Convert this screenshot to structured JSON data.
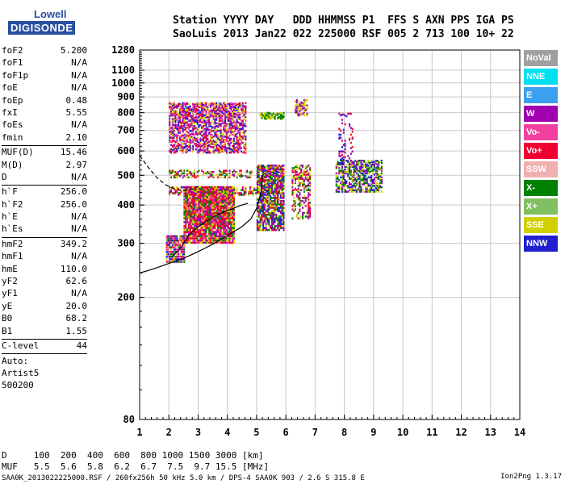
{
  "logo": {
    "line1": "Lowell",
    "line2": "DIGISONDE"
  },
  "header": {
    "line1": "Station YYYY DAY   DDD HHMMSS P1  FFS S AXN PPS IGA PS",
    "line2": "SaoLuis 2013 Jan22 022 225000 RSF 005 2 713 100 10+ 22"
  },
  "params": [
    {
      "k": "foF2",
      "v": "5.200"
    },
    {
      "k": "foF1",
      "v": "N/A"
    },
    {
      "k": "foF1p",
      "v": "N/A"
    },
    {
      "k": "foE",
      "v": "N/A"
    },
    {
      "k": "foEp",
      "v": "0.48"
    },
    {
      "k": "fxI",
      "v": "5.55"
    },
    {
      "k": "foEs",
      "v": "N/A"
    },
    {
      "k": "fmin",
      "v": "2.10"
    },
    {
      "sep": true
    },
    {
      "k": "MUF(D)",
      "v": "15.46"
    },
    {
      "k": "M(D)",
      "v": "2.97"
    },
    {
      "k": "D",
      "v": "N/A"
    },
    {
      "sep": true
    },
    {
      "k": "h`F",
      "v": "256.0"
    },
    {
      "k": "h`F2",
      "v": "256.0"
    },
    {
      "k": "h`E",
      "v": "N/A"
    },
    {
      "k": "h`Es",
      "v": "N/A"
    },
    {
      "sep": true
    },
    {
      "k": "hmF2",
      "v": "349.2"
    },
    {
      "k": "hmF1",
      "v": "N/A"
    },
    {
      "k": "hmE",
      "v": "110.0"
    },
    {
      "k": "yF2",
      "v": "62.6"
    },
    {
      "k": "yF1",
      "v": "N/A"
    },
    {
      "k": "yE",
      "v": "20.0"
    },
    {
      "k": "B0",
      "v": "68.2"
    },
    {
      "k": "B1",
      "v": "1.55"
    },
    {
      "sep": true
    },
    {
      "k": "C-level",
      "v": "44"
    },
    {
      "sep": true
    }
  ],
  "auto": {
    "line1": "Auto:",
    "line2": "Artist5",
    "line3": "500200"
  },
  "legend": [
    {
      "label": "NoVal",
      "color": "#a0a0a0"
    },
    {
      "label": "NNE",
      "color": "#00e0f0"
    },
    {
      "label": "E",
      "color": "#3aa0f0"
    },
    {
      "label": "W",
      "color": "#a000b0"
    },
    {
      "label": "Vo-",
      "color": "#f040a0"
    },
    {
      "label": "Vo+",
      "color": "#f00030"
    },
    {
      "label": "SSW",
      "color": "#f0b0b0"
    },
    {
      "label": "X-",
      "color": "#008000"
    },
    {
      "label": "X+",
      "color": "#80c060"
    },
    {
      "label": "SSE",
      "color": "#d0d000"
    },
    {
      "label": "NNW",
      "color": "#2020d0"
    }
  ],
  "footer": {
    "line1": "D     100  200  400  600  800 1000 1500 3000 [km]",
    "line2": "MUF   5.5  5.6  5.8  6.2  6.7  7.5  9.7 15.5 [MHz]",
    "line3": "SAA0K_2013022225000.RSF / 260fx256h 50 kHz 5.0 km / DPS-4 SAA0K 903 / 2.6 S 315.8 E",
    "version": "Ion2Png 1.3.17"
  },
  "chart_data": {
    "type": "scatter",
    "title": "",
    "xlabel": "",
    "ylabel": "",
    "xlim": [
      1,
      14
    ],
    "ylim": [
      80,
      1280
    ],
    "y_scale": "log",
    "grid": true,
    "x_ticks": [
      1,
      2,
      3,
      4,
      5,
      6,
      7,
      8,
      9,
      10,
      11,
      12,
      13,
      14
    ],
    "y_ticks": [
      80,
      200,
      300,
      400,
      500,
      600,
      700,
      800,
      900,
      1000,
      1100,
      1280
    ],
    "echo_clusters": [
      {
        "x": [
          1.9,
          2.5
        ],
        "y": [
          260,
          320
        ],
        "density": 0.9,
        "colors": [
          "W",
          "Vo+",
          "Vo-",
          "X-",
          "NNW",
          "SSE"
        ]
      },
      {
        "x": [
          2.5,
          4.2
        ],
        "y": [
          300,
          460
        ],
        "density": 0.95,
        "colors": [
          "Vo+",
          "Vo-",
          "Vo+",
          "W",
          "X-",
          "SSE"
        ]
      },
      {
        "x": [
          2.0,
          5.0
        ],
        "y": [
          430,
          460
        ],
        "density": 0.5,
        "colors": [
          "X-",
          "SSE",
          "W",
          "Vo+"
        ]
      },
      {
        "x": [
          2.0,
          4.8
        ],
        "y": [
          490,
          520
        ],
        "density": 0.35,
        "colors": [
          "SSE",
          "Vo+",
          "W",
          "X-"
        ]
      },
      {
        "x": [
          2.0,
          4.6
        ],
        "y": [
          590,
          860
        ],
        "density": 0.45,
        "colors": [
          "NNW",
          "W",
          "Vo-",
          "Vo+",
          "SSE"
        ]
      },
      {
        "x": [
          5.0,
          5.9
        ],
        "y": [
          330,
          540
        ],
        "density": 0.8,
        "colors": [
          "SSE",
          "X-",
          "Vo+",
          "W",
          "NNW"
        ]
      },
      {
        "x": [
          5.1,
          5.9
        ],
        "y": [
          760,
          800
        ],
        "density": 0.5,
        "colors": [
          "SSE",
          "X-"
        ]
      },
      {
        "x": [
          6.2,
          6.8
        ],
        "y": [
          360,
          540
        ],
        "density": 0.45,
        "colors": [
          "SSE",
          "Vo+",
          "W",
          "X-"
        ]
      },
      {
        "x": [
          6.3,
          6.7
        ],
        "y": [
          780,
          880
        ],
        "density": 0.35,
        "colors": [
          "SSE",
          "W"
        ]
      },
      {
        "x": [
          7.7,
          9.3
        ],
        "y": [
          440,
          560
        ],
        "density": 0.55,
        "colors": [
          "SSE",
          "X-",
          "NNW",
          "W"
        ]
      },
      {
        "x": [
          7.8,
          8.3
        ],
        "y": [
          560,
          800
        ],
        "density": 0.12,
        "colors": [
          "W",
          "Vo+",
          "NNW"
        ]
      }
    ],
    "series": [
      {
        "style": "dashed",
        "x": [
          1.0,
          1.3,
          1.6,
          1.9,
          2.2,
          2.5,
          2.8,
          3.0
        ],
        "y": [
          580,
          530,
          490,
          465,
          450,
          445,
          450,
          460
        ]
      },
      {
        "style": "solid",
        "x": [
          1.0,
          1.5,
          2.0,
          2.5,
          3.0,
          3.5,
          4.0,
          4.5,
          4.8,
          5.0,
          5.15,
          5.2
        ],
        "y": [
          240,
          248,
          258,
          268,
          282,
          298,
          318,
          340,
          360,
          390,
          440,
          500
        ]
      },
      {
        "style": "solid",
        "x": [
          2.1,
          2.4,
          2.7,
          3.0,
          3.3,
          3.6,
          3.9,
          4.2,
          4.5,
          4.7
        ],
        "y": [
          270,
          290,
          320,
          340,
          355,
          370,
          380,
          390,
          400,
          405
        ]
      }
    ]
  }
}
